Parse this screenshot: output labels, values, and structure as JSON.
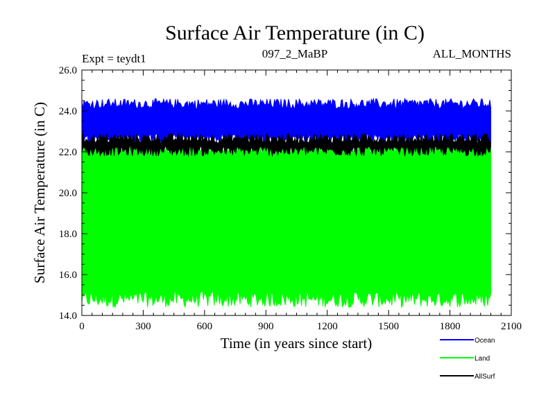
{
  "chart_data": {
    "type": "line",
    "title": "Surface Air Temperature (in C)",
    "experiment_label": "Expt = teydt1",
    "subtitle_center": "097_2_MaBP",
    "subtitle_right": "ALL_MONTHS",
    "xlabel": "Time (in years since start)",
    "ylabel": "Surface Air Temperature (in C)",
    "xlim": [
      0,
      2100
    ],
    "ylim": [
      14,
      26
    ],
    "x_ticks": [
      0,
      300,
      600,
      900,
      1200,
      1500,
      1800,
      2100
    ],
    "x_tick_labels": [
      "0",
      "300",
      "600",
      "900",
      "1200",
      "1500",
      "1800",
      "2100"
    ],
    "y_ticks": [
      14,
      16,
      18,
      20,
      22,
      24,
      26
    ],
    "y_tick_labels": [
      "14.0",
      "16.0",
      "18.0",
      "20.0",
      "22.0",
      "24.0",
      "26.0"
    ],
    "x_data_range": [
      0,
      2000
    ],
    "legend_position": "bottom-right",
    "series": [
      {
        "name": "Land",
        "color": "#00ff00",
        "min_band": [
          14.4,
          15.2
        ],
        "max_band": [
          21.9,
          22.6
        ]
      },
      {
        "name": "Ocean",
        "color": "#0000ff",
        "min_band": [
          22.4,
          22.9
        ],
        "max_band": [
          24.1,
          24.6
        ]
      },
      {
        "name": "AllSurf",
        "color": "#000000",
        "min_band": [
          21.8,
          22.3
        ],
        "max_band": [
          22.4,
          22.9
        ]
      }
    ],
    "legend_order": [
      "Ocean",
      "Land",
      "AllSurf"
    ]
  }
}
